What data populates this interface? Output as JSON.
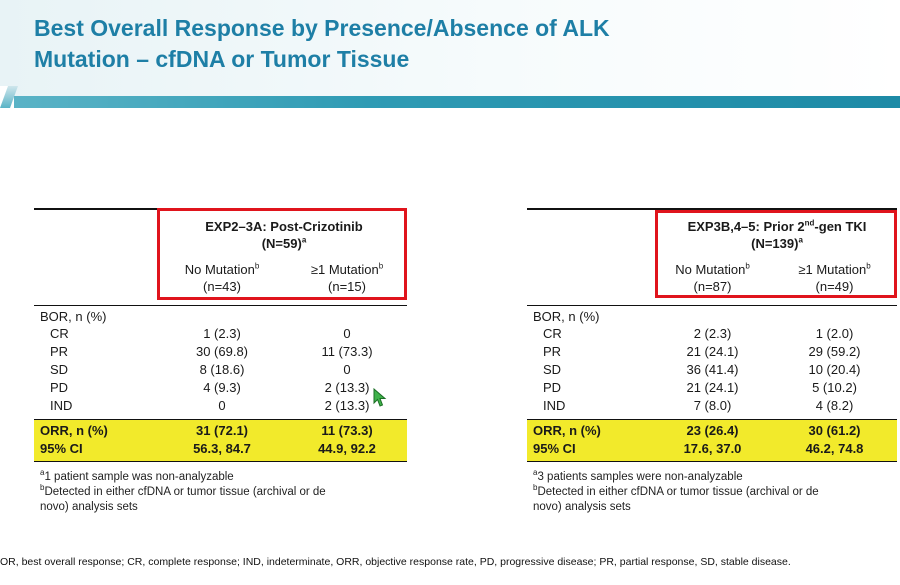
{
  "slide": {
    "title_line1": "Best Overall Response by Presence/Absence of ALK",
    "title_line2": "Mutation – cfDNA or Tumor Tissue",
    "accent_color": "#1e7fa6",
    "highlight_color": "#f2ea2b",
    "box_color": "#e0141c"
  },
  "left": {
    "group_title": "EXP2–3A: Post-Crizotinib",
    "group_n": "(N=59)",
    "group_sup": "a",
    "col1_label": "No Mutation",
    "col1_sup": "b",
    "col1_n": "(n=43)",
    "col2_label": "≥1 Mutation",
    "col2_sup": "b",
    "col2_n": "(n=15)",
    "bor_header": "BOR, n (%)",
    "rows": [
      {
        "label": "CR",
        "v1": "1 (2.3)",
        "v2": "0"
      },
      {
        "label": "PR",
        "v1": "30 (69.8)",
        "v2": "11 (73.3)"
      },
      {
        "label": "SD",
        "v1": "8 (18.6)",
        "v2": "0"
      },
      {
        "label": "PD",
        "v1": "4 (9.3)",
        "v2": "2 (13.3)"
      },
      {
        "label": "IND",
        "v1": "0",
        "v2": "2 (13.3)"
      }
    ],
    "orr_label": "ORR, n (%)",
    "orr_v1": "31 (72.1)",
    "orr_v2": "11 (73.3)",
    "ci_label": "95% CI",
    "ci_v1": "56.3, 84.7",
    "ci_v2": "44.9, 92.2",
    "fn_a_sup": "a",
    "fn_a": "1 patient sample was non-analyzable",
    "fn_b_sup": "b",
    "fn_b1": "Detected in either cfDNA or tumor tissue (archival or de",
    "fn_b2": "novo) analysis sets"
  },
  "right": {
    "group_title": "EXP3B,4–5: Prior 2nd-gen TKI",
    "group_title_pre": "EXP3B,4–5: Prior 2",
    "group_title_sup": "nd",
    "group_title_post": "-gen TKI",
    "group_n": "(N=139)",
    "group_sup": "a",
    "col1_label": "No Mutation",
    "col1_sup": "b",
    "col1_n": "(n=87)",
    "col2_label": "≥1 Mutation",
    "col2_sup": "b",
    "col2_n": "(n=49)",
    "bor_header": "BOR, n (%)",
    "rows": [
      {
        "label": "CR",
        "v1": "2 (2.3)",
        "v2": "1 (2.0)"
      },
      {
        "label": "PR",
        "v1": "21 (24.1)",
        "v2": "29 (59.2)"
      },
      {
        "label": "SD",
        "v1": "36 (41.4)",
        "v2": "10 (20.4)"
      },
      {
        "label": "PD",
        "v1": "21 (24.1)",
        "v2": "5 (10.2)"
      },
      {
        "label": "IND",
        "v1": "7 (8.0)",
        "v2": "4 (8.2)"
      }
    ],
    "orr_label": "ORR, n (%)",
    "orr_v1": "23 (26.4)",
    "orr_v2": "30 (61.2)",
    "ci_label": "95% CI",
    "ci_v1": "17.6, 37.0",
    "ci_v2": "46.2, 74.8",
    "fn_a_sup": "a",
    "fn_a": "3 patients samples were non-analyzable",
    "fn_b_sup": "b",
    "fn_b1": "Detected in either cfDNA or tumor tissue (archival or de",
    "fn_b2": "novo) analysis sets"
  },
  "abbreviations": "OR, best overall response; CR, complete response; IND, indeterminate, ORR, objective response rate, PD, progressive disease; PR, partial response, SD, stable disease."
}
